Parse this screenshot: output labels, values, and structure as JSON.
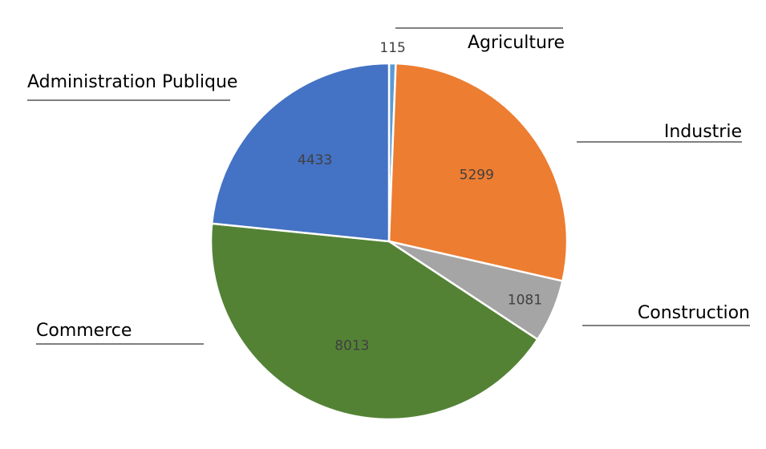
{
  "chart_data": {
    "type": "pie",
    "title": "",
    "slices": [
      {
        "label": "Agriculture",
        "value": 115,
        "value_label": "115",
        "color": "#5B9BD5"
      },
      {
        "label": "Industrie",
        "value": 5299,
        "value_label": "5299",
        "color": "#ED7D31"
      },
      {
        "label": "Construction",
        "value": 1081,
        "value_label": "1081",
        "color": "#A5A5A5"
      },
      {
        "label": "Commerce",
        "value": 8013,
        "value_label": "8013",
        "color": "#548235"
      },
      {
        "label": "Administration Publique",
        "value": 4433,
        "value_label": "4433",
        "color": "#4472C4"
      }
    ],
    "start_angle": "12 o'clock",
    "direction": "clockwise",
    "legend": "none",
    "category_labels": "outside with underline leader"
  }
}
